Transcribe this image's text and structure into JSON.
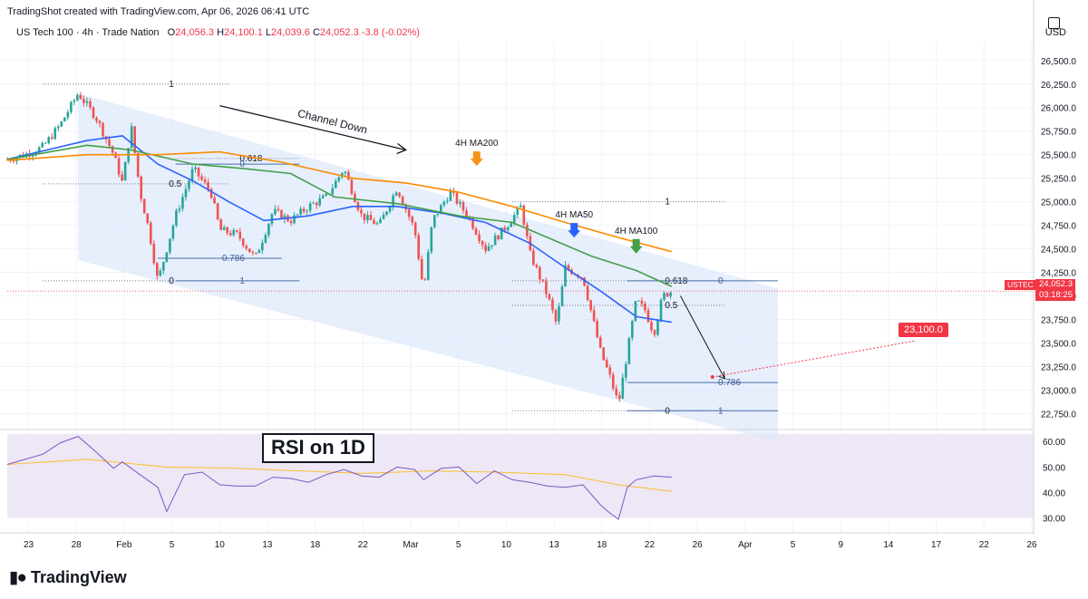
{
  "attribution": "TradingShot created with TradingView.com, Apr 06, 2026 06:41 UTC",
  "legend": {
    "symbol": "US Tech 100 · 4h · Trade Nation",
    "o_label": "O",
    "o": "24,056.3",
    "h_label": "H",
    "h": "24,100.1",
    "l_label": "L",
    "l": "24,039.6",
    "c_label": "C",
    "c": "24,052.3",
    "change": "-3.8 (-0.02%)"
  },
  "currency": "USD",
  "price_tag": "USTEC",
  "last_price": "24,052.3",
  "countdown": "03:18:25",
  "target_label": "23,100.0",
  "rsi_title": "RSI on 1D",
  "logo_text": "TradingView",
  "colors": {
    "channel_fill": "#dfe8fb",
    "rsi_fill": "#ede7f6",
    "ma50": "#2962ff",
    "ma100": "#43a047",
    "ma200": "#fb8c00",
    "up": "#26a69a",
    "down": "#ef5350",
    "rsi_line": "#7e57c2",
    "rsi_ma": "#fbc02d",
    "arrow_ma200": "#f7931a",
    "arrow_ma50": "#2962ff",
    "arrow_ma100": "#43a047"
  },
  "chart_data": {
    "type": "candlestick",
    "timeframe": "4h",
    "x_ticks": [
      "23",
      "28",
      "Feb",
      "5",
      "10",
      "13",
      "18",
      "22",
      "Mar",
      "5",
      "10",
      "13",
      "18",
      "22",
      "26",
      "Apr",
      "5",
      "9",
      "14",
      "17",
      "22",
      "26"
    ],
    "y_ticks": [
      "22,750.0",
      "23,000.0",
      "23,250.0",
      "23,500.0",
      "23,750.0",
      "24,000.0",
      "24,250.0",
      "24,500.0",
      "24,750.0",
      "25,000.0",
      "25,250.0",
      "25,500.0",
      "25,750.0",
      "26,000.0",
      "26,250.0",
      "26,500.0"
    ],
    "ylim": [
      22600,
      26700
    ],
    "price_path": [
      [
        "2026-01-20",
        25450
      ],
      [
        "2026-01-22",
        25500
      ],
      [
        "2026-01-24",
        25580
      ],
      [
        "2026-01-26",
        25820
      ],
      [
        "2026-01-28",
        26150
      ],
      [
        "2026-01-30",
        25900
      ],
      [
        "2026-02-01",
        25500
      ],
      [
        "2026-02-02",
        25200
      ],
      [
        "2026-02-03",
        25800
      ],
      [
        "2026-02-04",
        25100
      ],
      [
        "2026-02-05",
        24700
      ],
      [
        "2026-02-06",
        24150
      ],
      [
        "2026-02-08",
        24850
      ],
      [
        "2026-02-10",
        25350
      ],
      [
        "2026-02-12",
        25100
      ],
      [
        "2026-02-13",
        24700
      ],
      [
        "2026-02-15",
        24650
      ],
      [
        "2026-02-17",
        24400
      ],
      [
        "2026-02-19",
        24900
      ],
      [
        "2026-02-21",
        24800
      ],
      [
        "2026-02-23",
        24950
      ],
      [
        "2026-02-25",
        25050
      ],
      [
        "2026-02-27",
        25350
      ],
      [
        "2026-03-01",
        24850
      ],
      [
        "2026-03-03",
        24750
      ],
      [
        "2026-03-05",
        25150
      ],
      [
        "2026-03-07",
        24700
      ],
      [
        "2026-03-08",
        24050
      ],
      [
        "2026-03-09",
        24800
      ],
      [
        "2026-03-11",
        25100
      ],
      [
        "2026-03-13",
        24850
      ],
      [
        "2026-03-15",
        24500
      ],
      [
        "2026-03-17",
        24700
      ],
      [
        "2026-03-19",
        24950
      ],
      [
        "2026-03-20",
        24450
      ],
      [
        "2026-03-22",
        24000
      ],
      [
        "2026-03-23",
        23700
      ],
      [
        "2026-03-24",
        24300
      ],
      [
        "2026-03-26",
        24200
      ],
      [
        "2026-03-28",
        23400
      ],
      [
        "2026-03-29",
        23150
      ],
      [
        "2026-03-30",
        22850
      ],
      [
        "2026-03-31",
        23400
      ],
      [
        "2026-04-01",
        23950
      ],
      [
        "2026-04-02",
        23850
      ],
      [
        "2026-04-03",
        23600
      ],
      [
        "2026-04-04",
        24000
      ],
      [
        "2026-04-05",
        24052
      ]
    ],
    "series": [
      {
        "name": "4H MA50",
        "points": [
          [
            "2026-01-20",
            25450
          ],
          [
            "2026-01-29",
            25650
          ],
          [
            "2026-02-02",
            25700
          ],
          [
            "2026-02-06",
            25400
          ],
          [
            "2026-02-10",
            25220
          ],
          [
            "2026-02-14",
            25000
          ],
          [
            "2026-02-18",
            24800
          ],
          [
            "2026-02-23",
            24850
          ],
          [
            "2026-02-28",
            24950
          ],
          [
            "2026-03-05",
            24950
          ],
          [
            "2026-03-10",
            24880
          ],
          [
            "2026-03-15",
            24780
          ],
          [
            "2026-03-20",
            24560
          ],
          [
            "2026-03-24",
            24300
          ],
          [
            "2026-03-28",
            24050
          ],
          [
            "2026-04-01",
            23780
          ],
          [
            "2026-04-05",
            23720
          ]
        ]
      },
      {
        "name": "4H MA100",
        "points": [
          [
            "2026-01-20",
            25450
          ],
          [
            "2026-01-29",
            25600
          ],
          [
            "2026-02-03",
            25550
          ],
          [
            "2026-02-10",
            25400
          ],
          [
            "2026-02-16",
            25350
          ],
          [
            "2026-02-21",
            25300
          ],
          [
            "2026-02-26",
            25050
          ],
          [
            "2026-03-05",
            24980
          ],
          [
            "2026-03-12",
            24850
          ],
          [
            "2026-03-18",
            24780
          ],
          [
            "2026-03-22",
            24620
          ],
          [
            "2026-03-27",
            24420
          ],
          [
            "2026-04-01",
            24270
          ],
          [
            "2026-04-05",
            24100
          ]
        ]
      },
      {
        "name": "4H MA200",
        "points": [
          [
            "2026-01-20",
            25440
          ],
          [
            "2026-01-29",
            25500
          ],
          [
            "2026-02-06",
            25500
          ],
          [
            "2026-02-13",
            25530
          ],
          [
            "2026-02-20",
            25420
          ],
          [
            "2026-02-28",
            25250
          ],
          [
            "2026-03-06",
            25200
          ],
          [
            "2026-03-12",
            25100
          ],
          [
            "2026-03-18",
            24950
          ],
          [
            "2026-03-24",
            24780
          ],
          [
            "2026-03-30",
            24620
          ],
          [
            "2026-04-05",
            24470
          ]
        ]
      }
    ],
    "channel": {
      "label": "Channel Down",
      "upper": [
        [
          "2026-01-28",
          26150
        ],
        [
          "2026-04-17",
          24080
        ]
      ],
      "lower": [
        [
          "2026-01-28",
          24380
        ],
        [
          "2026-04-17",
          22450
        ]
      ]
    },
    "fib_levels": [
      {
        "label": "1",
        "date_from": "2026-01-24",
        "date_to": "2026-02-14",
        "price": 26250
      },
      {
        "label": "0.618",
        "date_from": "2026-02-08",
        "date_to": "2026-02-22",
        "price": 25460
      },
      {
        "label": "0",
        "date_from": "2026-02-08",
        "date_to": "2026-02-22",
        "price": 25400
      },
      {
        "label": "0.5",
        "date_from": "2026-01-24",
        "date_to": "2026-02-14",
        "price": 25190
      },
      {
        "label": "0.786",
        "date_from": "2026-02-06",
        "date_to": "2026-02-20",
        "price": 24400
      },
      {
        "label": "0",
        "date_from": "2026-01-24",
        "date_to": "2026-02-14",
        "price": 24160
      },
      {
        "label": "1",
        "date_from": "2026-02-08",
        "date_to": "2026-02-22",
        "price": 24160
      },
      {
        "label": "1",
        "date_from": "2026-03-18",
        "date_to": "2026-04-11",
        "price": 25000
      },
      {
        "label": "0.618",
        "date_from": "2026-03-18",
        "date_to": "2026-04-11",
        "price": 24160
      },
      {
        "label": "0",
        "date_from": "2026-03-31",
        "date_to": "2026-04-17",
        "price": 24160
      },
      {
        "label": "0.5",
        "date_from": "2026-03-18",
        "date_to": "2026-04-11",
        "price": 23900
      },
      {
        "label": "0.786",
        "date_from": "2026-03-31",
        "date_to": "2026-04-17",
        "price": 23080
      },
      {
        "label": "0",
        "date_from": "2026-03-18",
        "date_to": "2026-04-11",
        "price": 22780
      },
      {
        "label": "1",
        "date_from": "2026-03-31",
        "date_to": "2026-04-17",
        "price": 22780
      }
    ],
    "annotations": [
      {
        "text": "4H MA200",
        "date": "2026-03-14",
        "price": 25380
      },
      {
        "text": "4H MA50",
        "date": "2026-03-25",
        "price": 24620
      },
      {
        "text": "4H MA100",
        "date": "2026-04-01",
        "price": 24450
      }
    ],
    "projection": {
      "from": [
        "2026-04-06",
        24000
      ],
      "to": [
        "2026-04-11",
        23120
      ]
    },
    "target": {
      "date": "2026-04-09",
      "price": 23100
    },
    "rsi": {
      "y_ticks": [
        "30.00",
        "40.00",
        "50.00",
        "60.00"
      ],
      "ylim": [
        27,
        64
      ],
      "band": [
        30,
        63
      ],
      "values": [
        [
          "2026-01-20",
          51
        ],
        [
          "2026-01-22",
          53
        ],
        [
          "2026-01-24",
          55
        ],
        [
          "2026-01-26",
          59.5
        ],
        [
          "2026-01-28",
          62
        ],
        [
          "2026-01-30",
          56
        ],
        [
          "2026-02-01",
          49.5
        ],
        [
          "2026-02-02",
          52
        ],
        [
          "2026-02-04",
          47
        ],
        [
          "2026-02-06",
          42
        ],
        [
          "2026-02-07",
          32.5
        ],
        [
          "2026-02-09",
          47
        ],
        [
          "2026-02-11",
          48
        ],
        [
          "2026-02-13",
          43
        ],
        [
          "2026-02-15",
          42.5
        ],
        [
          "2026-02-17",
          42.5
        ],
        [
          "2026-02-19",
          46
        ],
        [
          "2026-02-21",
          45.5
        ],
        [
          "2026-02-23",
          44
        ],
        [
          "2026-02-25",
          47
        ],
        [
          "2026-02-27",
          49
        ],
        [
          "2026-03-01",
          46.5
        ],
        [
          "2026-03-03",
          46
        ],
        [
          "2026-03-05",
          50
        ],
        [
          "2026-03-07",
          49
        ],
        [
          "2026-03-08",
          45
        ],
        [
          "2026-03-10",
          49.5
        ],
        [
          "2026-03-12",
          50
        ],
        [
          "2026-03-14",
          43.5
        ],
        [
          "2026-03-16",
          48.5
        ],
        [
          "2026-03-18",
          45
        ],
        [
          "2026-03-20",
          44
        ],
        [
          "2026-03-22",
          42.5
        ],
        [
          "2026-03-24",
          42
        ],
        [
          "2026-03-26",
          43
        ],
        [
          "2026-03-28",
          35
        ],
        [
          "2026-03-29",
          32
        ],
        [
          "2026-03-30",
          29.5
        ],
        [
          "2026-03-31",
          42
        ],
        [
          "2026-04-01",
          45
        ],
        [
          "2026-04-03",
          46.5
        ],
        [
          "2026-04-05",
          46
        ]
      ],
      "ma": [
        [
          "2026-01-20",
          51
        ],
        [
          "2026-01-29",
          53
        ],
        [
          "2026-02-07",
          50
        ],
        [
          "2026-02-15",
          49.5
        ],
        [
          "2026-02-22",
          48.5
        ],
        [
          "2026-03-01",
          47.5
        ],
        [
          "2026-03-09",
          48.5
        ],
        [
          "2026-03-16",
          48
        ],
        [
          "2026-03-24",
          47
        ],
        [
          "2026-03-30",
          43
        ],
        [
          "2026-04-05",
          40.5
        ]
      ]
    }
  }
}
